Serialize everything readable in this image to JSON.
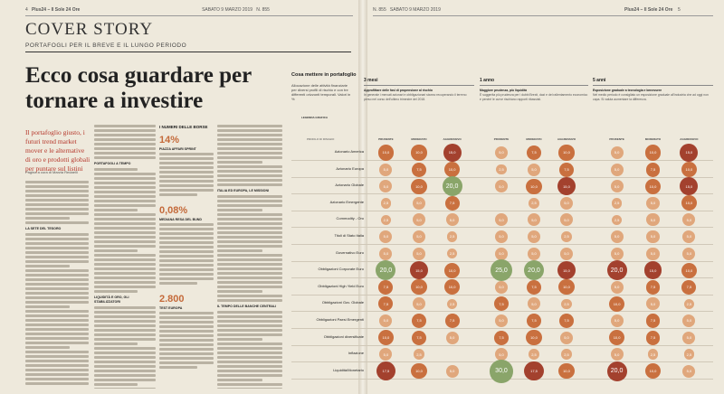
{
  "header_left": {
    "page": "4",
    "title": "Plus24 – Il Sole 24 Ore",
    "date": "SABATO 9 MARZO 2019",
    "issue": "N. 855"
  },
  "header_right": {
    "issue": "N. 855",
    "date": "SABATO 9 MARZO 2019",
    "title": "Plus24 – Il Sole 24 Ore",
    "page": "5"
  },
  "cover": "COVER STORY",
  "subcover": "PORTAFOGLI PER IL BREVE E IL LUNGO PERIODO",
  "headline": "Ecco cosa guardare per tornare a investire",
  "standfirst": "Il portafoglio giusto, i futuri trend market mover e le alternative di oro e prodotti globali per puntare sul listini",
  "byline": "Pagina a cura di Marzia Redaelli",
  "sidebar": {
    "title": "I NUMERI DELLE BORSE",
    "items": [
      {
        "value": "14%",
        "label": "PIAZZA AFFARI SPRINT"
      },
      {
        "value": "0,08%",
        "label": "MEDIANA RESA DEL BUND"
      },
      {
        "value": "2.800",
        "label": "TEST EUROPA"
      }
    ]
  },
  "columns": {
    "subheads": [
      "LA SETE DEL TESORO",
      "PORTAFOGLI A TEMPO",
      "LIQUIDITÀ E ORO, GLI STABILIZZATORI",
      "ITALIA ED EUROPA, LE MISSIONI",
      "IL TEMPO DELLE BANCHE CENTRALI"
    ]
  },
  "right": {
    "title": "Cosa mettere in portafoglio",
    "desc": "Allocazione delle attività finanziarie per diversi profili di rischio e con tre differenti orizzonti temporali. Valori in %",
    "legend_title": "LEGENDA GRAFICA",
    "profile_header": "PROFILO DI RISCHIO",
    "periods": [
      {
        "label": "3 mesi",
        "heading": "Approfittare delle fasi di propensione al rischio",
        "text": "In generale i mercati azionari e obbligazionari stanno recuperando il terreno perso nel corso dell'ultimo trimestre del 2018."
      },
      {
        "label": "1 anno",
        "heading": "Maggiore prudenza, più liquidità",
        "text": "È suggerita più prudenza per i dubbi Brexit, dazi e del rallentamento economico e perché le curve rischiano rapporti ribassisti."
      },
      {
        "label": "5 anni",
        "heading": "Esposizione graduale a tecnologia e benessere",
        "text": "Nel medio periodo è consigliato un esposizione graduale all'industria che ad oggi non capa. Si valuta aumentare la differenza."
      }
    ],
    "profile_labels": [
      "PRUDENTE",
      "MODERATO",
      "AGGRESSIVO"
    ],
    "assets": [
      "Azionario America",
      "Azionario Europa",
      "Azionario Globale",
      "Azionario Emergente",
      "Commodity - Oro",
      "Titoli di Stato Italia",
      "Governativo Euro",
      "Obbligazioni Corporate Euro",
      "Obbligazioni High Yield Euro",
      "Obbligazioni Gov. Globale",
      "Obbligazioni Paesi Emergenti",
      "Obbligazioni diversificate",
      "Inflazione",
      "Liquidità/Monetario"
    ]
  },
  "chart_data": {
    "type": "bubble-table",
    "rows": [
      "Azionario America",
      "Azionario Europa",
      "Azionario Globale",
      "Azionario Emergente",
      "Commodity - Oro",
      "Titoli di Stato Italia",
      "Governativo Euro",
      "Obbligazioni Corporate Euro",
      "Obbligazioni High Yield Euro",
      "Obbligazioni Gov. Globale",
      "Obbligazioni Paesi Emergenti",
      "Obbligazioni diversificate",
      "Inflazione",
      "Liquidità/Monetario"
    ],
    "columns": [
      "3 mesi PRUDENTE",
      "3 mesi MODERATO",
      "3 mesi AGGRESSIVO",
      "1 anno PRUDENTE",
      "1 anno MODERATO",
      "1 anno AGGRESSIVO",
      "5 anni PRUDENTE",
      "5 anni MODERATO",
      "5 anni AGGRESSIVO"
    ],
    "values": [
      [
        10.0,
        10.0,
        15.0,
        5.0,
        7.5,
        10.0,
        5.0,
        10.0,
        15.0
      ],
      [
        5.0,
        7.5,
        10.0,
        2.5,
        5.0,
        7.5,
        5.0,
        7.5,
        10.0
      ],
      [
        5.0,
        10.0,
        20.0,
        5.0,
        10.0,
        15.0,
        5.0,
        10.0,
        15.0
      ],
      [
        2.5,
        5.0,
        7.5,
        0,
        2.5,
        5.0,
        2.5,
        5.0,
        10.0
      ],
      [
        2.5,
        5.0,
        5.0,
        5.0,
        5.0,
        5.0,
        2.5,
        5.0,
        5.0
      ],
      [
        5.0,
        5.0,
        2.5,
        5.0,
        5.0,
        2.5,
        5.0,
        5.0,
        5.0
      ],
      [
        5.0,
        5.0,
        2.5,
        5.0,
        5.0,
        5.0,
        5.0,
        5.0,
        5.0
      ],
      [
        20.0,
        15.0,
        10.0,
        25.0,
        20.0,
        15.0,
        20.0,
        15.0,
        10.0
      ],
      [
        7.5,
        10.0,
        10.0,
        5.0,
        7.5,
        10.0,
        5.0,
        7.5,
        7.5
      ],
      [
        7.5,
        5.0,
        2.5,
        7.5,
        5.0,
        2.5,
        10.0,
        5.0,
        2.5
      ],
      [
        5.0,
        7.5,
        7.5,
        5.0,
        7.5,
        7.5,
        5.0,
        7.5,
        5.0
      ],
      [
        10.0,
        7.5,
        5.0,
        7.5,
        10.0,
        5.0,
        10.0,
        7.5,
        5.0
      ],
      [
        5.0,
        2.5,
        0,
        5.0,
        2.5,
        2.5,
        5.0,
        2.5,
        2.5
      ],
      [
        17.5,
        10.0,
        5.0,
        30.0,
        17.5,
        10.0,
        20.0,
        10.0,
        5.0
      ]
    ],
    "colors": {
      "high": "#a3412e",
      "mid": "#c9703f",
      "low": "#e0a77c",
      "green": "#8aa56a"
    }
  }
}
